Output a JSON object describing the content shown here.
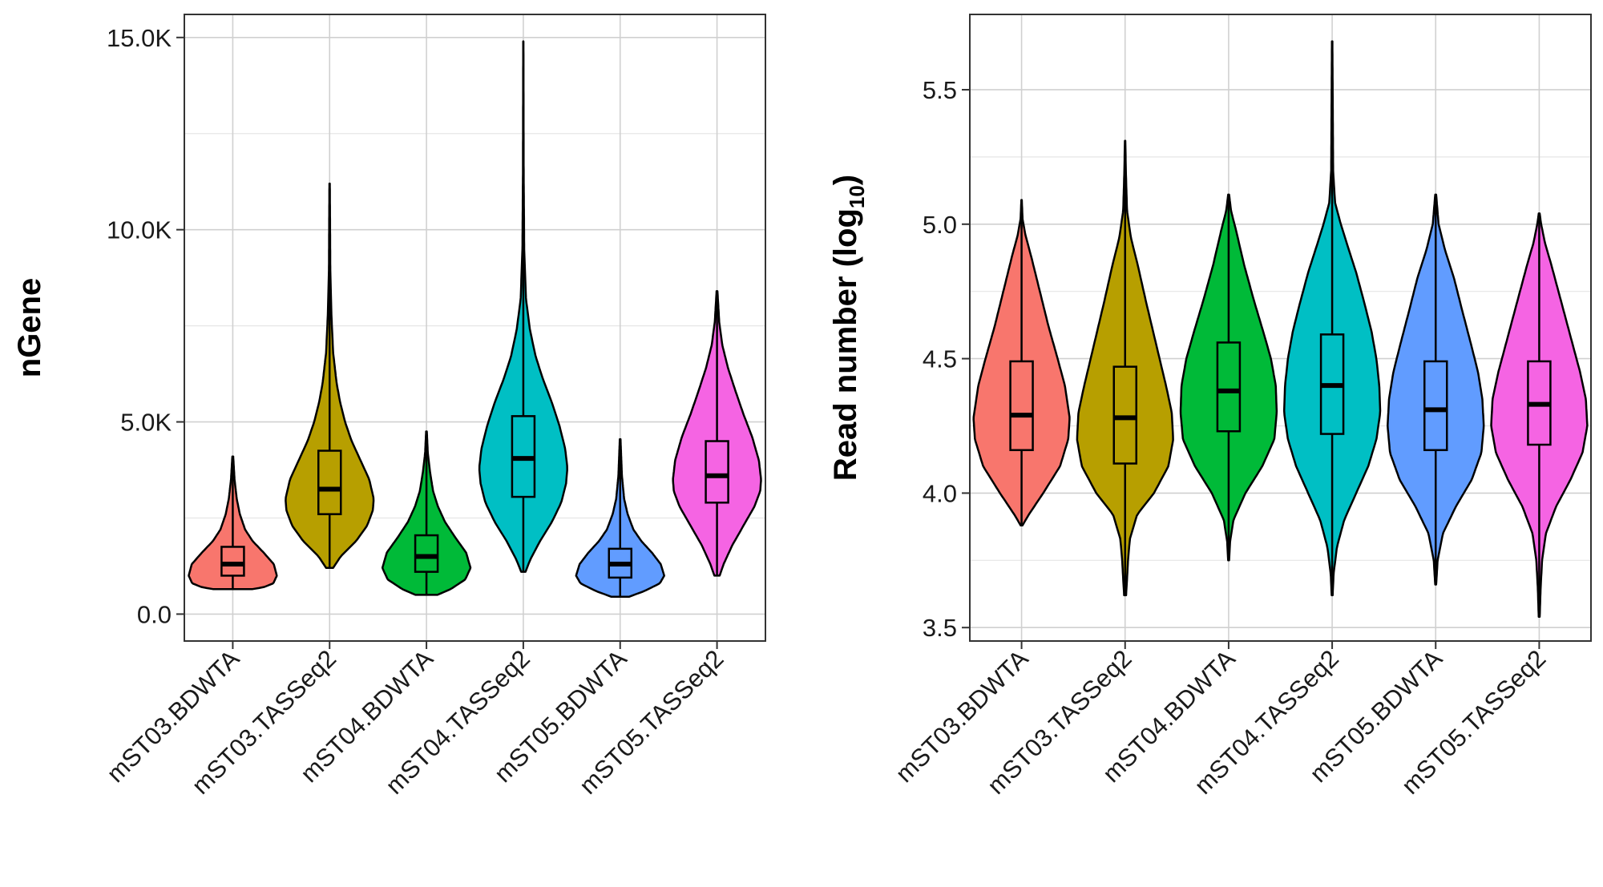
{
  "chart_data": [
    {
      "type": "violin",
      "ylabel": "nGene",
      "ylim": [
        -700,
        15600
      ],
      "yticks": [
        0,
        5000,
        10000,
        15000
      ],
      "ytick_labels": [
        "0.0",
        "5.0K",
        "10.0K",
        "15.0K"
      ],
      "yminor": [
        2500,
        7500,
        12500
      ],
      "grid": true,
      "categories": [
        "mST03.BDWTA",
        "mST03.TASSeq2",
        "mST04.BDWTA",
        "mST04.TASSeq2",
        "mST05.BDWTA",
        "mST05.TASSeq2"
      ],
      "colors": [
        "#F8766D",
        "#B79F00",
        "#00BA38",
        "#00BFC4",
        "#619CFF",
        "#F564E3"
      ],
      "series": [
        {
          "min": 650,
          "q1": 1000,
          "median": 1300,
          "q3": 1750,
          "max": 4100,
          "profile": [
            [
              650,
              0.45
            ],
            [
              700,
              0.7
            ],
            [
              800,
              0.92
            ],
            [
              1000,
              1.0
            ],
            [
              1300,
              0.93
            ],
            [
              1600,
              0.7
            ],
            [
              1900,
              0.45
            ],
            [
              2200,
              0.28
            ],
            [
              2600,
              0.16
            ],
            [
              3000,
              0.09
            ],
            [
              3500,
              0.04
            ],
            [
              4100,
              0.01
            ]
          ]
        },
        {
          "min": 1200,
          "q1": 2600,
          "median": 3250,
          "q3": 4250,
          "max": 11200,
          "profile": [
            [
              1200,
              0.08
            ],
            [
              1500,
              0.25
            ],
            [
              1900,
              0.6
            ],
            [
              2300,
              0.85
            ],
            [
              2700,
              0.98
            ],
            [
              3000,
              1.0
            ],
            [
              3500,
              0.9
            ],
            [
              4000,
              0.7
            ],
            [
              4500,
              0.5
            ],
            [
              5000,
              0.35
            ],
            [
              5500,
              0.24
            ],
            [
              6000,
              0.16
            ],
            [
              6800,
              0.08
            ],
            [
              7800,
              0.04
            ],
            [
              9000,
              0.015
            ],
            [
              11200,
              0.005
            ]
          ]
        },
        {
          "min": 500,
          "q1": 1100,
          "median": 1500,
          "q3": 2050,
          "max": 4750,
          "profile": [
            [
              500,
              0.25
            ],
            [
              650,
              0.55
            ],
            [
              900,
              0.88
            ],
            [
              1200,
              1.0
            ],
            [
              1600,
              0.9
            ],
            [
              2000,
              0.65
            ],
            [
              2400,
              0.42
            ],
            [
              2800,
              0.26
            ],
            [
              3200,
              0.15
            ],
            [
              3700,
              0.08
            ],
            [
              4200,
              0.03
            ],
            [
              4750,
              0.008
            ]
          ]
        },
        {
          "min": 1100,
          "q1": 3050,
          "median": 4050,
          "q3": 5150,
          "max": 14900,
          "profile": [
            [
              1100,
              0.05
            ],
            [
              1400,
              0.15
            ],
            [
              1900,
              0.38
            ],
            [
              2400,
              0.65
            ],
            [
              2900,
              0.86
            ],
            [
              3400,
              0.97
            ],
            [
              3800,
              1.0
            ],
            [
              4300,
              0.95
            ],
            [
              4900,
              0.82
            ],
            [
              5500,
              0.65
            ],
            [
              6100,
              0.45
            ],
            [
              6700,
              0.28
            ],
            [
              7400,
              0.15
            ],
            [
              8200,
              0.06
            ],
            [
              9500,
              0.02
            ],
            [
              11500,
              0.008
            ],
            [
              14900,
              0.002
            ]
          ]
        },
        {
          "min": 450,
          "q1": 950,
          "median": 1300,
          "q3": 1700,
          "max": 4550,
          "profile": [
            [
              450,
              0.2
            ],
            [
              600,
              0.55
            ],
            [
              800,
              0.9
            ],
            [
              1000,
              1.0
            ],
            [
              1300,
              0.92
            ],
            [
              1600,
              0.72
            ],
            [
              1900,
              0.48
            ],
            [
              2200,
              0.3
            ],
            [
              2600,
              0.17
            ],
            [
              3000,
              0.09
            ],
            [
              3600,
              0.04
            ],
            [
              4550,
              0.008
            ]
          ]
        },
        {
          "min": 1000,
          "q1": 2900,
          "median": 3600,
          "q3": 4500,
          "max": 8400,
          "profile": [
            [
              1000,
              0.06
            ],
            [
              1300,
              0.15
            ],
            [
              1800,
              0.35
            ],
            [
              2300,
              0.6
            ],
            [
              2800,
              0.85
            ],
            [
              3200,
              0.98
            ],
            [
              3500,
              1.0
            ],
            [
              4000,
              0.95
            ],
            [
              4600,
              0.8
            ],
            [
              5200,
              0.6
            ],
            [
              5800,
              0.42
            ],
            [
              6400,
              0.25
            ],
            [
              7000,
              0.12
            ],
            [
              7600,
              0.05
            ],
            [
              8400,
              0.01
            ]
          ]
        }
      ]
    },
    {
      "type": "violin",
      "ylabel": "Read number",
      "ylabel_subscript": "log",
      "ylabel_sub_index": "10",
      "ylim": [
        3.45,
        5.78
      ],
      "yticks": [
        3.5,
        4.0,
        4.5,
        5.0,
        5.5
      ],
      "ytick_labels": [
        "3.5",
        "4.0",
        "4.5",
        "5.0",
        "5.5"
      ],
      "yminor": [
        3.75,
        4.25,
        4.75,
        5.25
      ],
      "grid": true,
      "categories": [
        "mST03.BDWTA",
        "mST03.TASSeq2",
        "mST04.BDWTA",
        "mST04.TASSeq2",
        "mST05.BDWTA",
        "mST05.TASSeq2"
      ],
      "colors": [
        "#F8766D",
        "#B79F00",
        "#00BA38",
        "#00BFC4",
        "#619CFF",
        "#F564E3"
      ],
      "series": [
        {
          "min": 3.88,
          "q1": 4.16,
          "median": 4.29,
          "q3": 4.49,
          "max": 5.09,
          "profile": [
            [
              3.88,
              0.02
            ],
            [
              3.92,
              0.15
            ],
            [
              4.0,
              0.45
            ],
            [
              4.1,
              0.8
            ],
            [
              4.2,
              0.97
            ],
            [
              4.28,
              1.0
            ],
            [
              4.4,
              0.9
            ],
            [
              4.5,
              0.75
            ],
            [
              4.62,
              0.56
            ],
            [
              4.75,
              0.38
            ],
            [
              4.88,
              0.2
            ],
            [
              4.96,
              0.08
            ],
            [
              5.02,
              0.02
            ],
            [
              5.09,
              0.005
            ]
          ]
        },
        {
          "min": 3.62,
          "q1": 4.11,
          "median": 4.28,
          "q3": 4.47,
          "max": 5.31,
          "profile": [
            [
              3.62,
              0.02
            ],
            [
              3.68,
              0.04
            ],
            [
              3.75,
              0.06
            ],
            [
              3.83,
              0.1
            ],
            [
              3.92,
              0.25
            ],
            [
              4.0,
              0.6
            ],
            [
              4.1,
              0.9
            ],
            [
              4.2,
              1.0
            ],
            [
              4.3,
              0.97
            ],
            [
              4.4,
              0.85
            ],
            [
              4.55,
              0.65
            ],
            [
              4.7,
              0.45
            ],
            [
              4.85,
              0.26
            ],
            [
              4.95,
              0.12
            ],
            [
              5.05,
              0.04
            ],
            [
              5.2,
              0.015
            ],
            [
              5.31,
              0.005
            ]
          ]
        },
        {
          "min": 3.75,
          "q1": 4.23,
          "median": 4.38,
          "q3": 4.56,
          "max": 5.11,
          "profile": [
            [
              3.75,
              0.01
            ],
            [
              3.82,
              0.03
            ],
            [
              3.9,
              0.1
            ],
            [
              4.0,
              0.35
            ],
            [
              4.1,
              0.7
            ],
            [
              4.2,
              0.95
            ],
            [
              4.3,
              1.0
            ],
            [
              4.4,
              0.98
            ],
            [
              4.5,
              0.88
            ],
            [
              4.6,
              0.72
            ],
            [
              4.72,
              0.52
            ],
            [
              4.85,
              0.32
            ],
            [
              4.98,
              0.15
            ],
            [
              5.05,
              0.05
            ],
            [
              5.11,
              0.01
            ]
          ]
        },
        {
          "min": 3.62,
          "q1": 4.22,
          "median": 4.4,
          "q3": 4.59,
          "max": 5.68,
          "profile": [
            [
              3.62,
              0.01
            ],
            [
              3.7,
              0.03
            ],
            [
              3.8,
              0.1
            ],
            [
              3.9,
              0.25
            ],
            [
              4.0,
              0.5
            ],
            [
              4.1,
              0.75
            ],
            [
              4.2,
              0.92
            ],
            [
              4.3,
              1.0
            ],
            [
              4.4,
              0.98
            ],
            [
              4.5,
              0.92
            ],
            [
              4.6,
              0.82
            ],
            [
              4.7,
              0.68
            ],
            [
              4.82,
              0.5
            ],
            [
              4.92,
              0.32
            ],
            [
              5.0,
              0.18
            ],
            [
              5.08,
              0.06
            ],
            [
              5.2,
              0.02
            ],
            [
              5.68,
              0.005
            ]
          ]
        },
        {
          "min": 3.66,
          "q1": 4.16,
          "median": 4.31,
          "q3": 4.49,
          "max": 5.11,
          "profile": [
            [
              3.66,
              0.01
            ],
            [
              3.75,
              0.04
            ],
            [
              3.85,
              0.15
            ],
            [
              3.95,
              0.42
            ],
            [
              4.05,
              0.75
            ],
            [
              4.15,
              0.95
            ],
            [
              4.25,
              1.0
            ],
            [
              4.35,
              0.97
            ],
            [
              4.45,
              0.88
            ],
            [
              4.55,
              0.74
            ],
            [
              4.68,
              0.55
            ],
            [
              4.8,
              0.38
            ],
            [
              4.9,
              0.2
            ],
            [
              5.0,
              0.06
            ],
            [
              5.11,
              0.01
            ]
          ]
        },
        {
          "min": 3.54,
          "q1": 4.18,
          "median": 4.33,
          "q3": 4.49,
          "max": 5.04,
          "profile": [
            [
              3.54,
              0.01
            ],
            [
              3.65,
              0.03
            ],
            [
              3.75,
              0.06
            ],
            [
              3.85,
              0.14
            ],
            [
              3.95,
              0.35
            ],
            [
              4.05,
              0.65
            ],
            [
              4.15,
              0.9
            ],
            [
              4.25,
              1.0
            ],
            [
              4.35,
              0.97
            ],
            [
              4.45,
              0.85
            ],
            [
              4.55,
              0.7
            ],
            [
              4.65,
              0.55
            ],
            [
              4.75,
              0.4
            ],
            [
              4.85,
              0.25
            ],
            [
              4.93,
              0.12
            ],
            [
              5.0,
              0.04
            ],
            [
              5.04,
              0.01
            ]
          ]
        }
      ]
    }
  ]
}
